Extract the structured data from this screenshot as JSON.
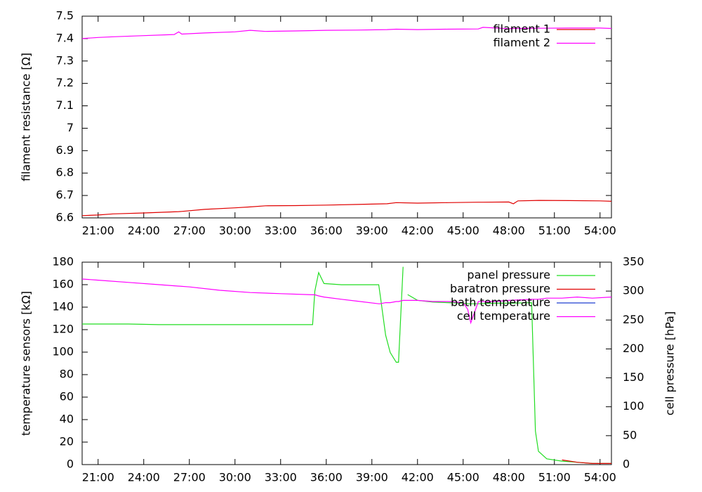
{
  "chart_data": [
    {
      "type": "line",
      "ylabel": "filament resistance [Ω]",
      "x": [
        19.95,
        21,
        22,
        24,
        26,
        26.3,
        26.5,
        28,
        30,
        31,
        32,
        34,
        36,
        38,
        40,
        40.6,
        42,
        44,
        46,
        46.3,
        48,
        48.3,
        48.6,
        50,
        52,
        54,
        54.75
      ],
      "series": [
        {
          "name": "filament 1",
          "color": "#e00000",
          "values": [
            6.61,
            6.613,
            6.618,
            6.622,
            6.627,
            6.628,
            6.629,
            6.638,
            6.645,
            6.649,
            6.654,
            6.655,
            6.657,
            6.66,
            6.663,
            6.668,
            6.666,
            6.668,
            6.67,
            6.67,
            6.671,
            6.663,
            6.676,
            6.678,
            6.677,
            6.676,
            6.674
          ]
        },
        {
          "name": "filament 2",
          "color": "#ff00ff",
          "values": [
            7.4,
            7.405,
            7.408,
            7.413,
            7.418,
            7.43,
            7.42,
            7.425,
            7.43,
            7.437,
            7.432,
            7.434,
            7.437,
            7.438,
            7.44,
            7.442,
            7.44,
            7.442,
            7.443,
            7.45,
            7.444,
            7.445,
            7.445,
            7.446,
            7.447,
            7.447,
            7.445
          ]
        }
      ],
      "xlim": [
        19.95,
        54.75
      ],
      "xticks": [
        {
          "value": 21,
          "label": "21:00"
        },
        {
          "value": 24,
          "label": "24:00"
        },
        {
          "value": 27,
          "label": "27:00"
        },
        {
          "value": 30,
          "label": "30:00"
        },
        {
          "value": 33,
          "label": "33:00"
        },
        {
          "value": 36,
          "label": "36:00"
        },
        {
          "value": 39,
          "label": "39:00"
        },
        {
          "value": 42,
          "label": "42:00"
        },
        {
          "value": 45,
          "label": "45:00"
        },
        {
          "value": 48,
          "label": "48:00"
        },
        {
          "value": 51,
          "label": "51:00"
        },
        {
          "value": 54,
          "label": "54:00"
        }
      ],
      "ylim": [
        6.6,
        7.5
      ],
      "yticks": [
        6.6,
        6.7,
        6.8,
        6.9,
        7,
        7.1,
        7.2,
        7.3,
        7.4,
        7.5
      ],
      "legend": "top-right"
    },
    {
      "type": "line",
      "ylabel": "temperature sensors [kΩ]",
      "y2label": "cell pressure [hPa]",
      "x": [
        19.95,
        21,
        23,
        25,
        27,
        29,
        31,
        33,
        35.1,
        35.25,
        35.5,
        35.85,
        37,
        39.45,
        39.55,
        39.9,
        40.2,
        40.6,
        40.75,
        41.05,
        41.2,
        41.35,
        42,
        43,
        44,
        45,
        45.3,
        45.5,
        46,
        47,
        48,
        49.5,
        49.75,
        49.95,
        50.5,
        51.5,
        52.5,
        53.5,
        54.75
      ],
      "series": [
        {
          "name": "panel pressure",
          "color": "#22dd22",
          "axis": "y2",
          "values": [
            243,
            243,
            243,
            242,
            242,
            242,
            242,
            242,
            242,
            300,
            332,
            313,
            311,
            311,
            292,
            224,
            194,
            177,
            177,
            342,
            null,
            294,
            284,
            281,
            280,
            279,
            278,
            278,
            278,
            279,
            279,
            280,
            58,
            23,
            10,
            6,
            4,
            2,
            2
          ]
        },
        {
          "name": "baratron pressure",
          "color": "#e00000",
          "axis": "y2",
          "values": [
            null,
            null,
            null,
            null,
            null,
            null,
            null,
            null,
            null,
            null,
            null,
            null,
            null,
            null,
            null,
            null,
            null,
            null,
            null,
            null,
            null,
            null,
            null,
            null,
            null,
            null,
            null,
            null,
            null,
            null,
            null,
            null,
            null,
            null,
            null,
            8,
            4,
            2,
            2
          ]
        },
        {
          "name": "bath temperature",
          "color": "#1f3fd0",
          "values": [
            null,
            null,
            null,
            null,
            null,
            null,
            null,
            null,
            null,
            null,
            null,
            null,
            null,
            null,
            null,
            null,
            null,
            null,
            null,
            null,
            null,
            null,
            null,
            null,
            null,
            null,
            null,
            null,
            null,
            null,
            null,
            null,
            null,
            null,
            null,
            null,
            null,
            null,
            null
          ]
        },
        {
          "name": "cell temperature",
          "color": "#ff00ff",
          "values": [
            165,
            164,
            162,
            160,
            158,
            155,
            153,
            152,
            151,
            151,
            150,
            149,
            147,
            143,
            143,
            144,
            144,
            145,
            145,
            146,
            146,
            146,
            146,
            145,
            145,
            144,
            138,
            126,
            145,
            145,
            146,
            147,
            147,
            147,
            148,
            148,
            149,
            148,
            149
          ]
        }
      ],
      "xlim": [
        19.95,
        54.75
      ],
      "xticks": [
        {
          "value": 21,
          "label": "21:00"
        },
        {
          "value": 24,
          "label": "24:00"
        },
        {
          "value": 27,
          "label": "27:00"
        },
        {
          "value": 30,
          "label": "30:00"
        },
        {
          "value": 33,
          "label": "33:00"
        },
        {
          "value": 36,
          "label": "36:00"
        },
        {
          "value": 39,
          "label": "39:00"
        },
        {
          "value": 42,
          "label": "42:00"
        },
        {
          "value": 45,
          "label": "45:00"
        },
        {
          "value": 48,
          "label": "48:00"
        },
        {
          "value": 51,
          "label": "51:00"
        },
        {
          "value": 54,
          "label": "54:00"
        }
      ],
      "ylim": [
        0,
        180
      ],
      "yticks": [
        0,
        20,
        40,
        60,
        80,
        100,
        120,
        140,
        160,
        180
      ],
      "y2lim": [
        0,
        350
      ],
      "y2ticks": [
        0,
        50,
        100,
        150,
        200,
        250,
        300,
        350
      ],
      "legend": "top-right"
    }
  ]
}
